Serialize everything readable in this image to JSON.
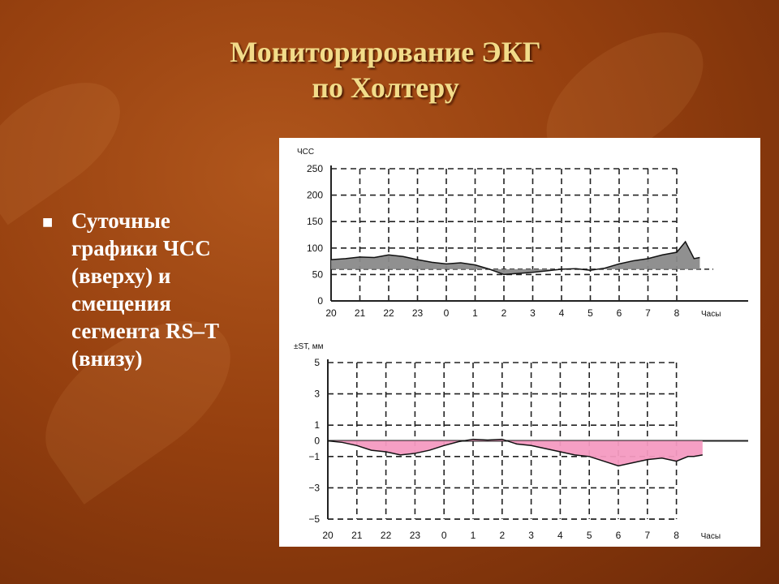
{
  "slide": {
    "title_line1": "Мониторирование ЭКГ",
    "title_line2": "по Холтеру",
    "bullet": "Суточные графики ЧСС (вверху) и смещения сегмента RS–T (внизу)",
    "colors": {
      "title": "#f2dc8a",
      "background": "#96400f",
      "hr_fill": "#8a8a8a",
      "st_fill": "#f49ac1"
    }
  },
  "chart_data": [
    {
      "type": "area",
      "ylabel": "ЧСС",
      "xlabel": "Часы",
      "ylim": [
        0,
        250
      ],
      "yticks": [
        "250",
        "200",
        "150",
        "100",
        "50",
        "0"
      ],
      "ytick_values": [
        250,
        200,
        150,
        100,
        50,
        0
      ],
      "xticks": [
        "20",
        "21",
        "22",
        "23",
        "0",
        "1",
        "2",
        "3",
        "4",
        "5",
        "6",
        "7",
        "8"
      ],
      "baseline": 60,
      "x": [
        0,
        0.5,
        1,
        1.5,
        2,
        2.5,
        3,
        3.5,
        4,
        4.5,
        5,
        5.5,
        6,
        6.5,
        7,
        7.5,
        8,
        8.5,
        9,
        9.5,
        10,
        10.5,
        11,
        11.5,
        12,
        12.3,
        12.6,
        12.8
      ],
      "values": [
        78,
        80,
        83,
        82,
        87,
        84,
        78,
        73,
        70,
        72,
        68,
        60,
        50,
        52,
        54,
        57,
        60,
        61,
        58,
        62,
        70,
        76,
        80,
        87,
        92,
        112,
        80,
        82
      ],
      "grid": true
    },
    {
      "type": "area",
      "ylabel": "±ST, мм",
      "xlabel": "Часы",
      "ylim": [
        -5,
        5
      ],
      "yticks": [
        "5",
        "3",
        "1",
        "0",
        "−1",
        "−3",
        "−5"
      ],
      "ytick_values": [
        5,
        3,
        1,
        0,
        -1,
        -3,
        -5
      ],
      "xticks": [
        "20",
        "21",
        "22",
        "23",
        "0",
        "1",
        "2",
        "3",
        "4",
        "5",
        "6",
        "7",
        "8"
      ],
      "baseline": 0,
      "x": [
        0,
        0.5,
        1,
        1.5,
        2,
        2.5,
        3,
        3.5,
        4,
        4.5,
        5,
        5.5,
        6,
        6.5,
        7,
        7.5,
        8,
        8.5,
        9,
        9.5,
        10,
        10.5,
        11,
        11.5,
        12,
        12.4,
        12.6,
        12.9
      ],
      "values": [
        0,
        -0.1,
        -0.3,
        -0.6,
        -0.7,
        -0.9,
        -0.8,
        -0.6,
        -0.3,
        -0.05,
        0.1,
        0.05,
        0.1,
        -0.2,
        -0.3,
        -0.5,
        -0.7,
        -0.9,
        -1.0,
        -1.3,
        -1.6,
        -1.4,
        -1.2,
        -1.1,
        -1.3,
        -1.0,
        -1.0,
        -0.9
      ],
      "grid": true
    }
  ]
}
